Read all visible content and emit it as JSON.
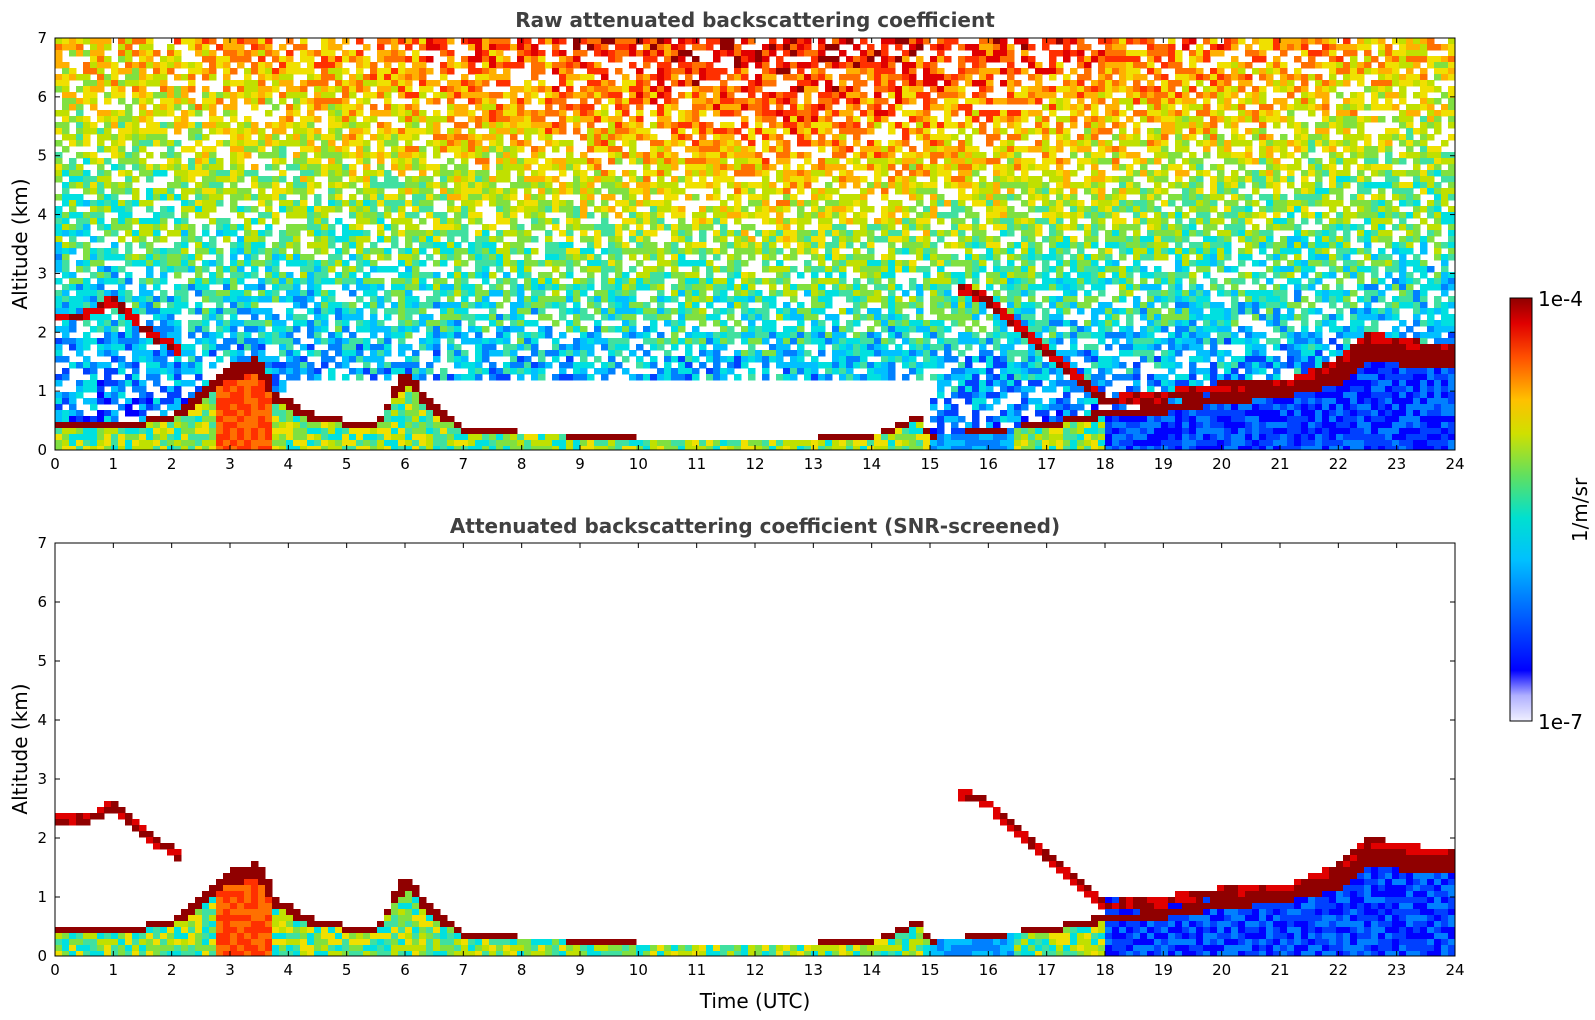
{
  "chart_data": [
    {
      "type": "heatmap",
      "title": "Raw attenuated backscattering coefficient",
      "ylabel": "Altitude (km)",
      "xlabel": "",
      "xlim": [
        0,
        24
      ],
      "ylim": [
        0,
        7
      ],
      "xticks": [
        "0",
        "1",
        "2",
        "3",
        "4",
        "5",
        "6",
        "7",
        "8",
        "9",
        "10",
        "11",
        "12",
        "13",
        "14",
        "15",
        "16",
        "17",
        "18",
        "19",
        "20",
        "21",
        "22",
        "23",
        "24"
      ],
      "yticks": [
        "0",
        "1",
        "2",
        "3",
        "4",
        "5",
        "6",
        "7"
      ],
      "layer_top_km": [
        [
          0.0,
          0.5
        ],
        [
          1.0,
          0.5
        ],
        [
          2.0,
          0.6
        ],
        [
          3.0,
          1.5
        ],
        [
          3.5,
          1.6
        ],
        [
          3.8,
          1.0
        ],
        [
          4.5,
          0.6
        ],
        [
          5.5,
          0.5
        ],
        [
          6.0,
          1.4
        ],
        [
          6.5,
          0.8
        ],
        [
          7.0,
          0.4
        ],
        [
          8.0,
          0.35
        ],
        [
          9.0,
          0.3
        ],
        [
          10.0,
          0.25
        ],
        [
          11.0,
          0.2
        ],
        [
          12.0,
          0.2
        ],
        [
          13.0,
          0.25
        ],
        [
          14.0,
          0.3
        ],
        [
          14.8,
          0.6
        ],
        [
          15.0,
          0.3
        ],
        [
          16.0,
          0.4
        ],
        [
          17.0,
          0.5
        ],
        [
          18.0,
          0.7
        ],
        [
          19.0,
          0.8
        ],
        [
          20.0,
          1.0
        ],
        [
          21.0,
          1.1
        ],
        [
          22.0,
          1.4
        ],
        [
          22.5,
          1.9
        ],
        [
          23.0,
          1.8
        ],
        [
          24.0,
          1.7
        ]
      ],
      "elevated_layers_km": [
        [
          0.0,
          2.3
        ],
        [
          0.5,
          2.3
        ],
        [
          1.0,
          2.6
        ],
        [
          1.5,
          2.1
        ],
        [
          2.0,
          1.8
        ],
        [
          2.2,
          1.6
        ],
        [
          15.5,
          2.8
        ],
        [
          16.0,
          2.6
        ],
        [
          18.0,
          0.85
        ],
        [
          19.0,
          0.95
        ],
        [
          20.0,
          1.1
        ],
        [
          21.0,
          1.1
        ],
        [
          22.0,
          1.5
        ],
        [
          22.5,
          1.95
        ],
        [
          23.0,
          1.85
        ],
        [
          24.0,
          1.7
        ]
      ]
    },
    {
      "type": "heatmap",
      "title": "Attenuated backscattering coefficient (SNR-screened)",
      "ylabel": "Altitude (km)",
      "xlabel": "Time (UTC)",
      "xlim": [
        0,
        24
      ],
      "ylim": [
        0,
        7
      ],
      "xticks": [
        "0",
        "1",
        "2",
        "3",
        "4",
        "5",
        "6",
        "7",
        "8",
        "9",
        "10",
        "11",
        "12",
        "13",
        "14",
        "15",
        "16",
        "17",
        "18",
        "19",
        "20",
        "21",
        "22",
        "23",
        "24"
      ],
      "yticks": [
        "0",
        "1",
        "2",
        "3",
        "4",
        "5",
        "6",
        "7"
      ],
      "screened": true
    }
  ],
  "colorbar": {
    "max_label": "1e-4",
    "min_label": "1e-7",
    "unit_label": "1/m/sr",
    "colors": [
      "#f0f0ff",
      "#c8c8ff",
      "#a0a0ff",
      "#0000ff",
      "#0040ff",
      "#0080ff",
      "#00c0ff",
      "#00e0e0",
      "#40e0a0",
      "#80e040",
      "#c0e000",
      "#f0e000",
      "#ffb000",
      "#ff7000",
      "#ff3000",
      "#e00000",
      "#900000"
    ]
  }
}
